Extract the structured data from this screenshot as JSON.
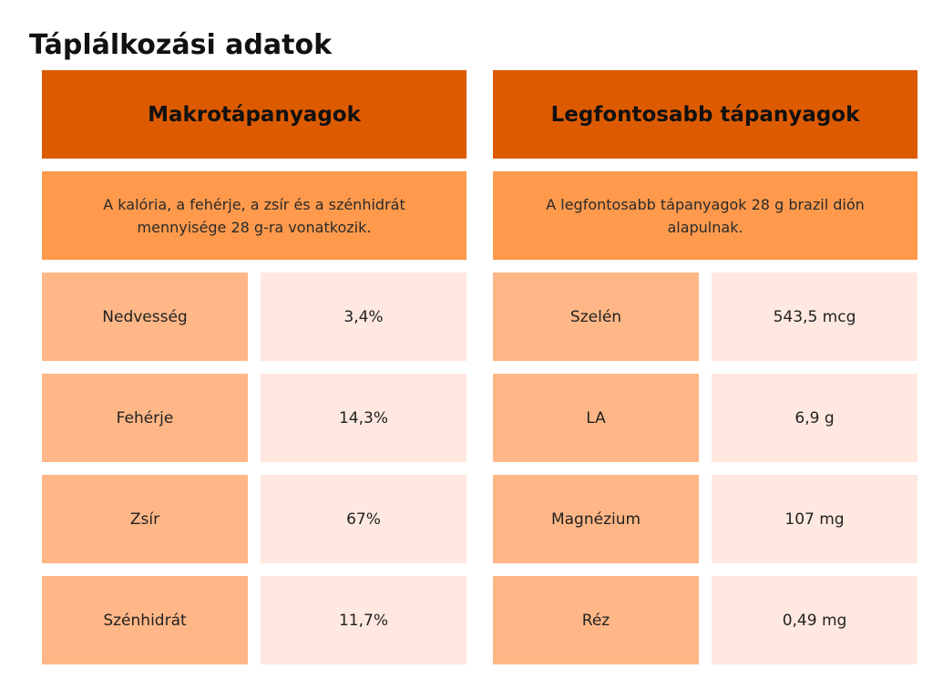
{
  "title": "Táplálkozási adatok",
  "left": {
    "header": "Makrotápanyagok",
    "description": "A kalória, a fehérje, a zsír és a szénhidrát mennyisége 28 g-ra vonatkozik.",
    "rows": [
      {
        "label": "Nedvesség",
        "value": "3,4%"
      },
      {
        "label": "Fehérje",
        "value": "14,3%"
      },
      {
        "label": "Zsír",
        "value": "67%"
      },
      {
        "label": "Szénhidrát",
        "value": "11,7%"
      }
    ]
  },
  "right": {
    "header": "Legfontosabb tápanyagok",
    "description": "A legfontosabb tápanyagok 28 g brazil dión alapulnak.",
    "rows": [
      {
        "label": "Szelén",
        "value": "543,5 mcg"
      },
      {
        "label": "LA",
        "value": "6,9 g"
      },
      {
        "label": "Magnézium",
        "value": "107 mg"
      },
      {
        "label": "Réz",
        "value": "0,49 mg"
      }
    ]
  },
  "colors": {
    "header": "#dd5b00",
    "description": "#ff9a4d",
    "label_cell": "#ffb787",
    "value_cell": "#ffe8df"
  }
}
